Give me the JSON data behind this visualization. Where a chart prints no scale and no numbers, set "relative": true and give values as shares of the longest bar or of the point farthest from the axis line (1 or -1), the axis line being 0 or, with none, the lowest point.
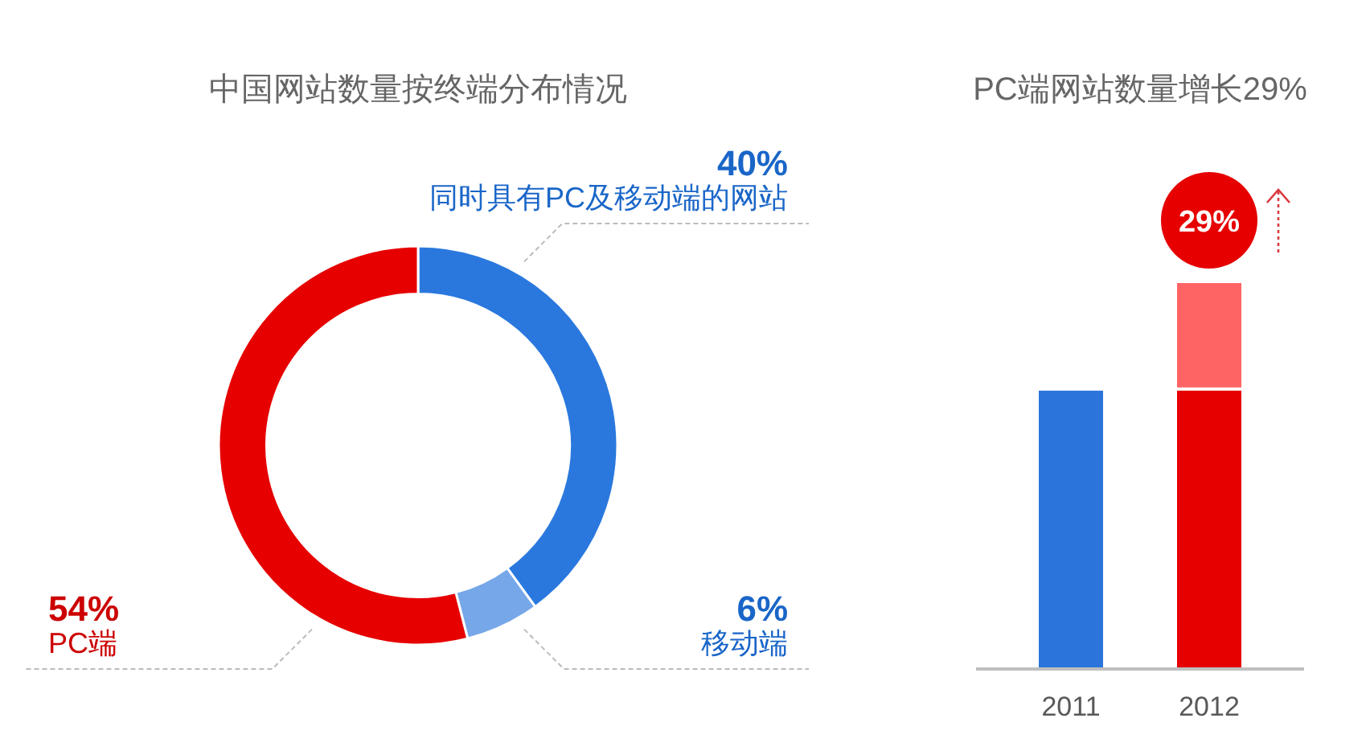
{
  "chart_data": [
    {
      "type": "donut",
      "title": "中国网站数量按终端分布情况",
      "categories": [
        "同时具有PC及移动端的网站",
        "移动端",
        "PC端"
      ],
      "values": [
        40,
        6,
        54
      ],
      "value_labels": [
        "40%",
        "6%",
        "54%"
      ],
      "colors": [
        "#2a78de",
        "#76a7e8",
        "#e60000"
      ]
    },
    {
      "type": "bar",
      "title": "PC端网站数量增长29%",
      "categories": [
        "2011",
        "2012"
      ],
      "relative": true,
      "stacked": true,
      "series": [
        {
          "color": "#2b74dc",
          "values": [
            0.72,
            null
          ]
        },
        {
          "color": "#e60000",
          "values": [
            null,
            0.72
          ]
        },
        {
          "color": "#ff6464",
          "values": [
            null,
            0.28
          ]
        }
      ],
      "annotations": [
        "29%"
      ]
    }
  ]
}
